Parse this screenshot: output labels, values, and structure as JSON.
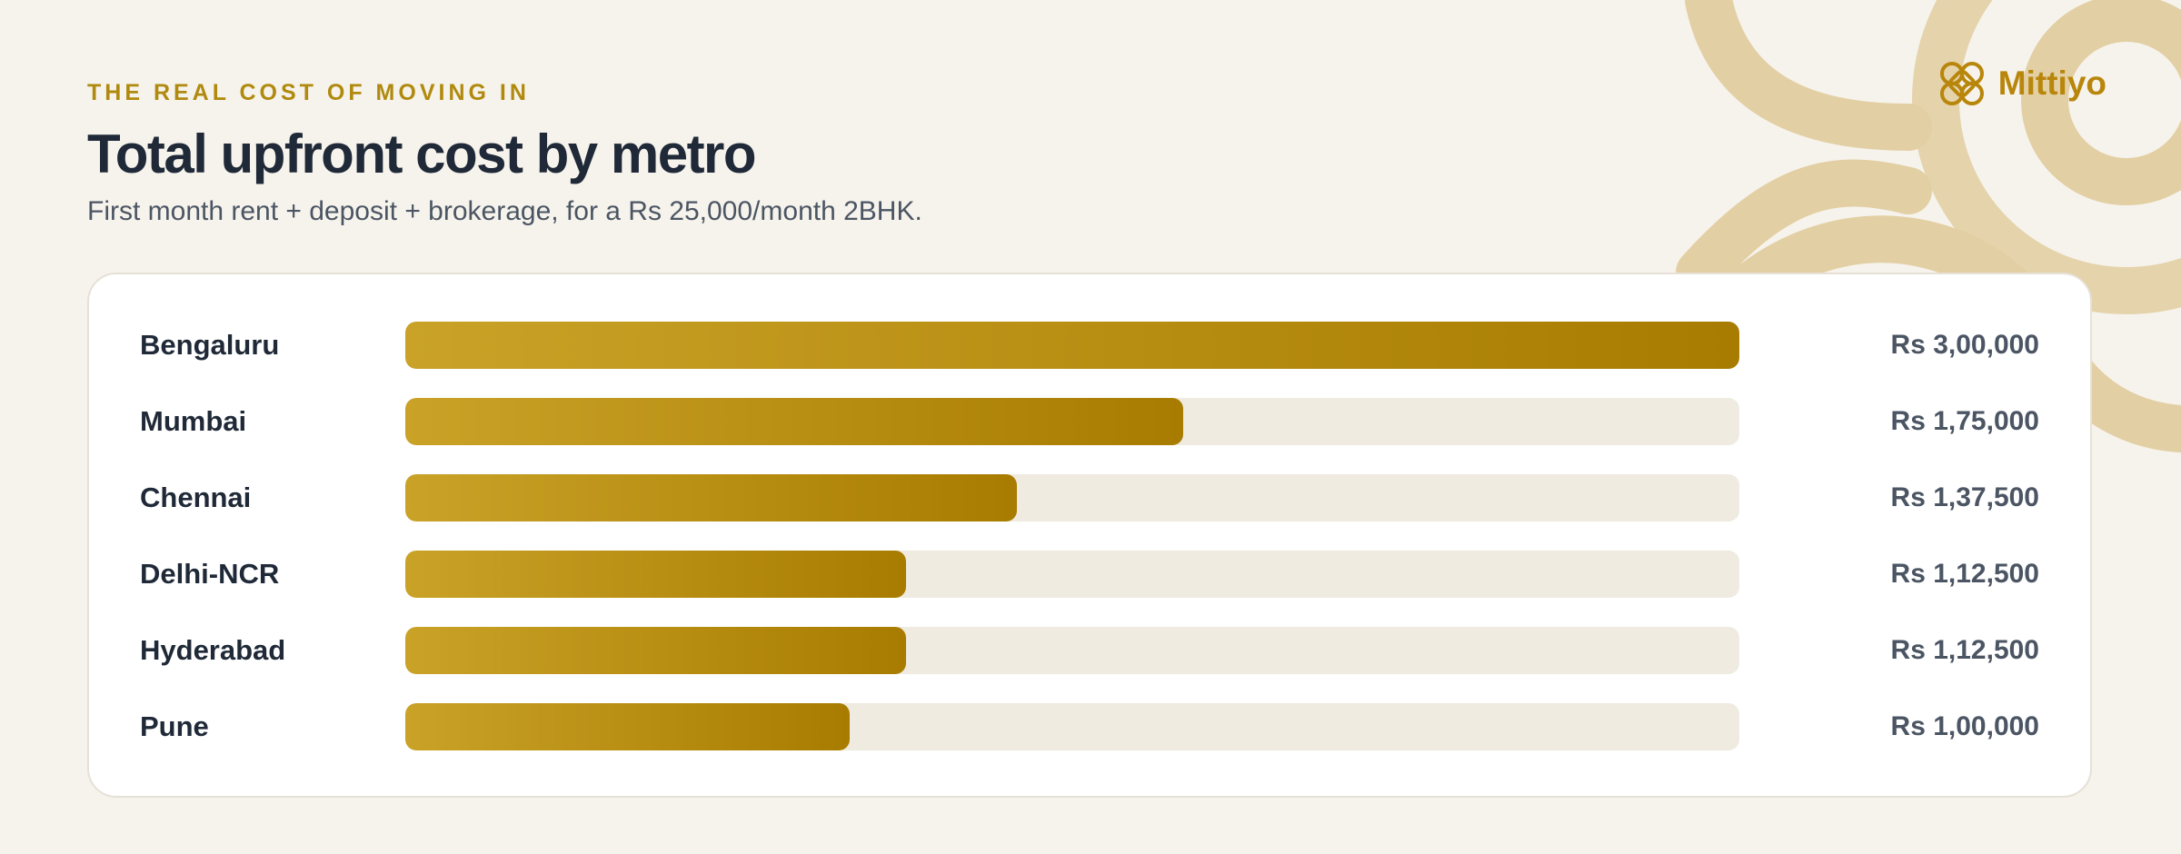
{
  "header": {
    "eyebrow": "THE REAL COST OF MOVING IN",
    "title": "Total upfront cost by metro",
    "subtitle": "First month rent + deposit + brokerage, for a Rs 25,000/month 2BHK."
  },
  "logo": {
    "text": "Mittiyo",
    "icon": "knot-logo-icon"
  },
  "colors": {
    "accent": "#b8860b",
    "bar_start": "#c9a227",
    "bar_end": "#a87c00",
    "track": "#f0ebe0",
    "background": "#f6f3ec",
    "decoration": "#e3cfa4"
  },
  "chart_data": {
    "type": "bar",
    "orientation": "horizontal",
    "categories": [
      "Bengaluru",
      "Mumbai",
      "Chennai",
      "Delhi-NCR",
      "Hyderabad",
      "Pune"
    ],
    "values": [
      300000,
      175000,
      137500,
      112500,
      112500,
      100000
    ],
    "value_labels": [
      "Rs 3,00,000",
      "Rs 1,75,000",
      "Rs 1,37,500",
      "Rs 1,12,500",
      "Rs 1,12,500",
      "Rs 1,00,000"
    ],
    "xlim": [
      0,
      300000
    ],
    "grid": false,
    "legend": "none"
  }
}
